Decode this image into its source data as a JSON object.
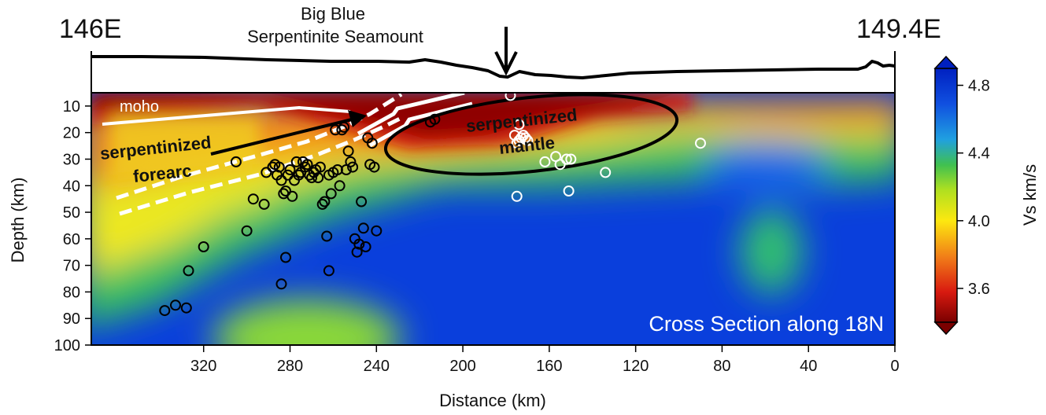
{
  "top_labels": {
    "left_lon": "146E",
    "right_lon": "149.4E",
    "seamount_line1": "Big Blue",
    "seamount_line2": "Serpentinite Seamount"
  },
  "annotations": {
    "moho": "moho",
    "forearc_line1": "serpentinized",
    "forearc_line2": "forearc",
    "mantle_line1": "serpentinized",
    "mantle_line2": "mantle",
    "section_title": "Cross Section along 18N"
  },
  "colorbar": {
    "label": "Vs  km/s",
    "ticks": [
      "4.8",
      "4.4",
      "4.0",
      "3.6"
    ],
    "tick_values": [
      4.8,
      4.4,
      4.0,
      3.6
    ],
    "range": [
      3.4,
      4.9
    ],
    "colors": [
      "#7a0000",
      "#d81a10",
      "#f07818",
      "#fde810",
      "#b0e020",
      "#40c050",
      "#20a0e0",
      "#1050e0",
      "#0020c0"
    ]
  },
  "chart_data": {
    "type": "scatter",
    "xlabel": "Distance (km)",
    "ylabel": "Depth (km)",
    "xlim": [
      372,
      0
    ],
    "ylim": [
      100,
      5
    ],
    "xticks": [
      320,
      280,
      240,
      200,
      160,
      120,
      80,
      40,
      0
    ],
    "yticks": [
      10,
      20,
      30,
      40,
      50,
      60,
      70,
      80,
      90,
      100
    ],
    "series": [
      {
        "color": "#000000",
        "points": [
          [
            338,
            87
          ],
          [
            333,
            85
          ],
          [
            328,
            86
          ],
          [
            327,
            72
          ],
          [
            320,
            63
          ],
          [
            305,
            31
          ],
          [
            300,
            57
          ],
          [
            297,
            45
          ],
          [
            292,
            47
          ],
          [
            291,
            35
          ],
          [
            288,
            33
          ],
          [
            287,
            32
          ],
          [
            286,
            36
          ],
          [
            285,
            33
          ],
          [
            284,
            38
          ],
          [
            283,
            43
          ],
          [
            282,
            42
          ],
          [
            281,
            36
          ],
          [
            280,
            34
          ],
          [
            279,
            44
          ],
          [
            278,
            38
          ],
          [
            277,
            31
          ],
          [
            276,
            36
          ],
          [
            275,
            35
          ],
          [
            274,
            31
          ],
          [
            273,
            33
          ],
          [
            272,
            32
          ],
          [
            271,
            36
          ],
          [
            270,
            37
          ],
          [
            269,
            35
          ],
          [
            268,
            34
          ],
          [
            267,
            37
          ],
          [
            266,
            33
          ],
          [
            265,
            47
          ],
          [
            264,
            46
          ],
          [
            263,
            59
          ],
          [
            262,
            36
          ],
          [
            261,
            43
          ],
          [
            260,
            35
          ],
          [
            259,
            19
          ],
          [
            258,
            34
          ],
          [
            257,
            40
          ],
          [
            256,
            19
          ],
          [
            255,
            18
          ],
          [
            254,
            34
          ],
          [
            253,
            27
          ],
          [
            252,
            31
          ],
          [
            251,
            33
          ],
          [
            250,
            60
          ],
          [
            249,
            65
          ],
          [
            248,
            62
          ],
          [
            247,
            46
          ],
          [
            246,
            56
          ],
          [
            245,
            63
          ],
          [
            244,
            22
          ],
          [
            243,
            32
          ],
          [
            242,
            24
          ],
          [
            241,
            33
          ],
          [
            240,
            57
          ],
          [
            282,
            67
          ],
          [
            284,
            77
          ],
          [
            262,
            72
          ],
          [
            215,
            16
          ],
          [
            213,
            15
          ]
        ]
      },
      {
        "color": "#ffffff",
        "points": [
          [
            178,
            6
          ],
          [
            176,
            21
          ],
          [
            175,
            24
          ],
          [
            174,
            23
          ],
          [
            173,
            22
          ],
          [
            172,
            21
          ],
          [
            171,
            22
          ],
          [
            170,
            23
          ],
          [
            175,
            44
          ],
          [
            162,
            31
          ],
          [
            157,
            29
          ],
          [
            155,
            32
          ],
          [
            152,
            30
          ],
          [
            150,
            30
          ],
          [
            151,
            42
          ],
          [
            134,
            35
          ],
          [
            90,
            24
          ],
          [
            174,
            17
          ]
        ]
      }
    ],
    "arrow_marker_km": 175
  }
}
